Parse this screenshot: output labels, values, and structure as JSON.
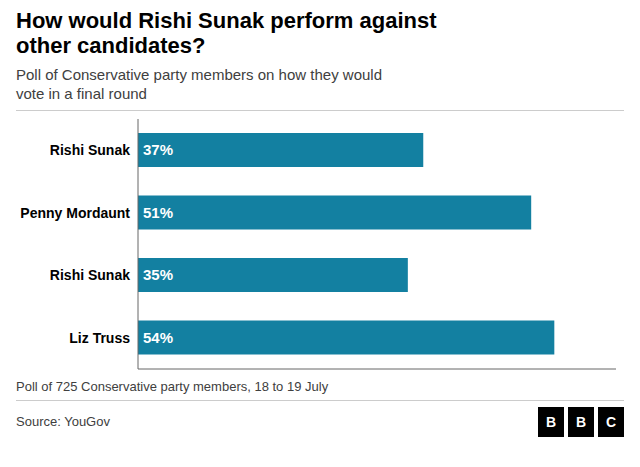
{
  "chart_data": {
    "type": "bar",
    "orientation": "horizontal",
    "title": "How would Rishi Sunak perform against\nother candidates?",
    "subtitle": "Poll of Conservative party members on how they would\nvote in a final round",
    "footnote": "Poll of 725 Conservative party members, 18 to 19 July",
    "source": "Source: YouGov",
    "annotations": [
      "B",
      "B",
      "C"
    ],
    "categories": [
      "Rishi Sunak",
      "Penny Mordaunt",
      "Rishi Sunak",
      "Liz Truss"
    ],
    "values": [
      37,
      51,
      35,
      54
    ],
    "value_labels": [
      "37%",
      "51%",
      "35%",
      "54%"
    ],
    "data_labels": true,
    "color": "#1380A1",
    "xlim": [
      0,
      62
    ],
    "tick_labels": "y"
  }
}
